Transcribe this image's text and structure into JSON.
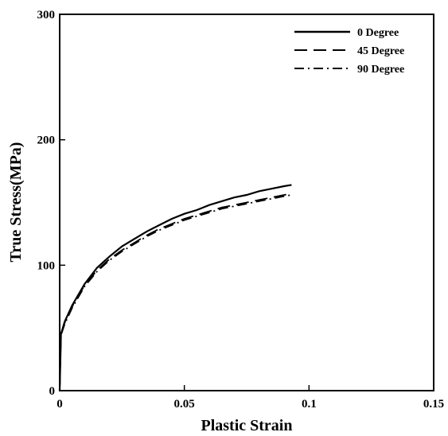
{
  "chart_data": {
    "type": "line",
    "xlabel": "Plastic Strain",
    "ylabel": "True Stress(MPa)",
    "xlim": [
      0,
      0.15
    ],
    "ylim": [
      0,
      300
    ],
    "x_ticks": [
      0,
      0.05,
      0.1,
      0.15
    ],
    "x_tick_labels": [
      "0",
      "0.05",
      "0.1",
      "0.15"
    ],
    "y_ticks": [
      0,
      100,
      200,
      300
    ],
    "y_tick_labels": [
      "0",
      "100",
      "200",
      "300"
    ],
    "grid": false,
    "legend_position": "top-right",
    "series": [
      {
        "name": "0 Degree",
        "line_style": "solid",
        "color": "#000000",
        "points": [
          [
            0,
            0
          ],
          [
            0.0005,
            45
          ],
          [
            0.002,
            55
          ],
          [
            0.005,
            68
          ],
          [
            0.01,
            85
          ],
          [
            0.015,
            98
          ],
          [
            0.02,
            107
          ],
          [
            0.025,
            115
          ],
          [
            0.03,
            121
          ],
          [
            0.035,
            127
          ],
          [
            0.04,
            132
          ],
          [
            0.045,
            137
          ],
          [
            0.05,
            141
          ],
          [
            0.055,
            144
          ],
          [
            0.06,
            148
          ],
          [
            0.065,
            151
          ],
          [
            0.07,
            154
          ],
          [
            0.075,
            156
          ],
          [
            0.08,
            159
          ],
          [
            0.085,
            161
          ],
          [
            0.09,
            163
          ],
          [
            0.093,
            164
          ]
        ]
      },
      {
        "name": "45 Degree",
        "line_style": "long-dash",
        "color": "#000000",
        "points": [
          [
            0,
            0
          ],
          [
            0.0005,
            45
          ],
          [
            0.002,
            54
          ],
          [
            0.005,
            67
          ],
          [
            0.01,
            84
          ],
          [
            0.015,
            96
          ],
          [
            0.02,
            105
          ],
          [
            0.025,
            112
          ],
          [
            0.03,
            118
          ],
          [
            0.035,
            124
          ],
          [
            0.04,
            129
          ],
          [
            0.045,
            133
          ],
          [
            0.05,
            137
          ],
          [
            0.055,
            140
          ],
          [
            0.06,
            143
          ],
          [
            0.065,
            146
          ],
          [
            0.07,
            148
          ],
          [
            0.075,
            150
          ],
          [
            0.08,
            152
          ],
          [
            0.085,
            154
          ],
          [
            0.09,
            156
          ],
          [
            0.093,
            157
          ]
        ]
      },
      {
        "name": "90 Degree",
        "line_style": "dash-dot",
        "color": "#000000",
        "points": [
          [
            0,
            0
          ],
          [
            0.0005,
            44
          ],
          [
            0.002,
            53
          ],
          [
            0.005,
            66
          ],
          [
            0.01,
            83
          ],
          [
            0.015,
            95
          ],
          [
            0.02,
            104
          ],
          [
            0.025,
            111
          ],
          [
            0.03,
            117
          ],
          [
            0.035,
            123
          ],
          [
            0.04,
            128
          ],
          [
            0.045,
            132
          ],
          [
            0.05,
            136
          ],
          [
            0.055,
            139
          ],
          [
            0.06,
            142
          ],
          [
            0.065,
            145
          ],
          [
            0.07,
            147
          ],
          [
            0.075,
            149
          ],
          [
            0.08,
            151
          ],
          [
            0.085,
            153
          ],
          [
            0.09,
            155
          ],
          [
            0.093,
            156
          ]
        ]
      }
    ]
  }
}
